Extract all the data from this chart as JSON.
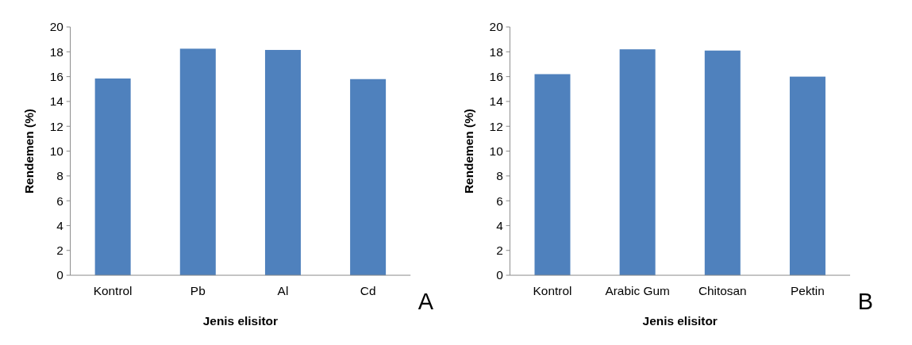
{
  "chart_data": [
    {
      "type": "bar",
      "categories": [
        "Kontrol",
        "Pb",
        "Al",
        "Cd"
      ],
      "values": [
        15.85,
        18.25,
        18.15,
        15.8
      ],
      "color": "#4f81bd",
      "ylim": [
        0,
        20
      ],
      "yticks": [
        0,
        2,
        4,
        6,
        8,
        10,
        12,
        14,
        16,
        18,
        20
      ],
      "xlabel": "Jenis elisitor",
      "ylabel": "Rendemen (%)",
      "annotations": [
        "A"
      ]
    },
    {
      "type": "bar",
      "categories": [
        "Kontrol",
        "Arabic Gum",
        "Chitosan",
        "Pektin"
      ],
      "values": [
        16.2,
        18.2,
        18.1,
        16.0
      ],
      "color": "#4f81bd",
      "ylim": [
        0,
        20
      ],
      "yticks": [
        0,
        2,
        4,
        6,
        8,
        10,
        12,
        14,
        16,
        18,
        20
      ],
      "xlabel": "Jenis elisitor",
      "ylabel": "Rendemen (%)",
      "annotations": [
        "B"
      ]
    }
  ]
}
